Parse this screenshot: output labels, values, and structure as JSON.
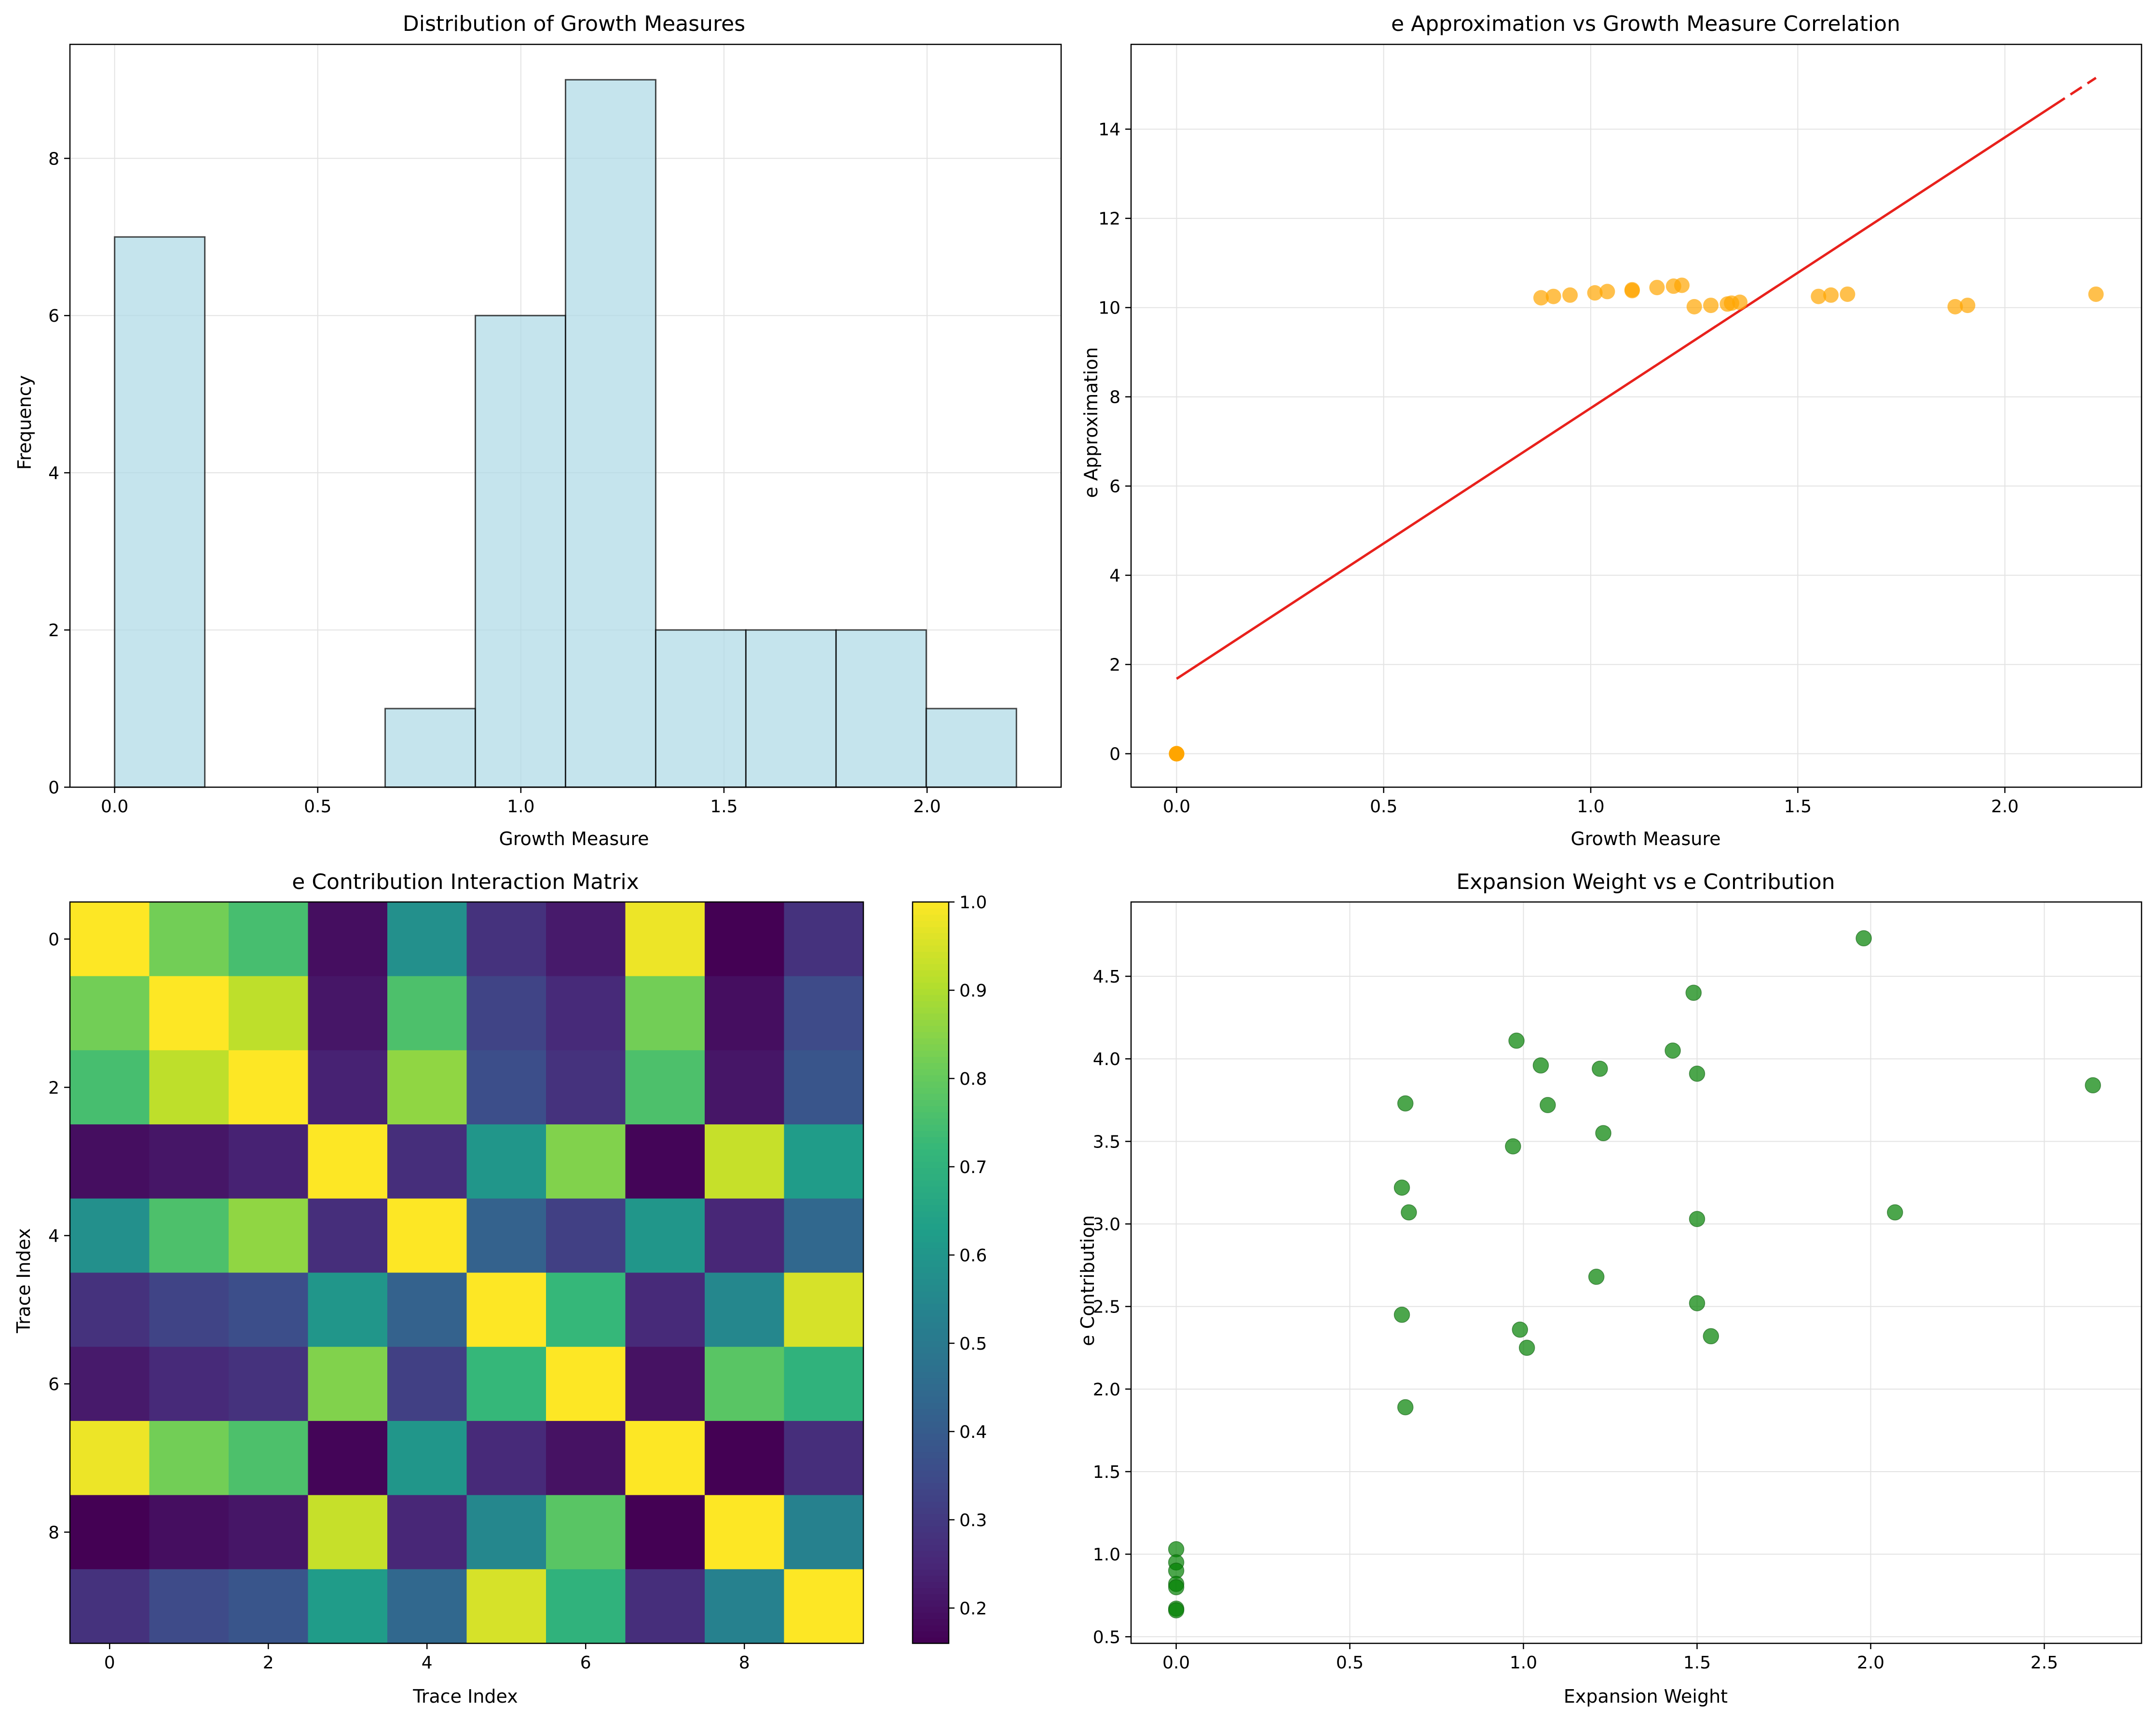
{
  "chart_data": [
    {
      "type": "bar",
      "title": "Distribution of Growth Measures",
      "xlabel": "Growth Measure",
      "ylabel": "Frequency",
      "xlim": [
        -0.11,
        2.33
      ],
      "ylim": [
        0,
        9.45
      ],
      "xticks": [
        0.0,
        0.5,
        1.0,
        1.5,
        2.0
      ],
      "xtick_labels": [
        "0.0",
        "0.5",
        "1.0",
        "1.5",
        "2.0"
      ],
      "yticks": [
        0,
        2,
        4,
        6,
        8
      ],
      "ytick_labels": [
        "0",
        "2",
        "4",
        "6",
        "8"
      ],
      "grid": true,
      "bar_color": "#add8e6",
      "bin_edges": [
        0.0,
        0.222,
        0.444,
        0.666,
        0.888,
        1.11,
        1.332,
        1.554,
        1.776,
        1.998,
        2.22
      ],
      "values": [
        7,
        0,
        0,
        1,
        6,
        9,
        2,
        2,
        2,
        1
      ]
    },
    {
      "type": "scatter",
      "title": "e Approximation vs Growth Measure Correlation",
      "xlabel": "Growth Measure",
      "ylabel": "e Approximation",
      "xlim": [
        -0.11,
        2.33
      ],
      "ylim": [
        -0.75,
        15.9
      ],
      "xticks": [
        0.0,
        0.5,
        1.0,
        1.5,
        2.0
      ],
      "xtick_labels": [
        "0.0",
        "0.5",
        "1.0",
        "1.5",
        "2.0"
      ],
      "yticks": [
        0,
        2,
        4,
        6,
        8,
        10,
        12,
        14
      ],
      "ytick_labels": [
        "0",
        "2",
        "4",
        "6",
        "8",
        "10",
        "12",
        "14"
      ],
      "grid": true,
      "point_color": "#ffa500",
      "trend_color": "#e8211c",
      "trend_line": {
        "x": [
          0.0,
          2.22
        ],
        "y": [
          1.68,
          15.15
        ]
      },
      "x": [
        0,
        0,
        0,
        0,
        0,
        0,
        0,
        0.88,
        0.91,
        0.95,
        1.01,
        1.04,
        1.1,
        1.1,
        1.16,
        1.2,
        1.22,
        1.25,
        1.29,
        1.33,
        1.34,
        1.36,
        1.55,
        1.58,
        1.62,
        1.88,
        1.91,
        2.22
      ],
      "y": [
        0,
        0,
        0,
        0,
        0,
        0,
        0,
        10.22,
        10.25,
        10.28,
        10.33,
        10.36,
        10.4,
        10.38,
        10.45,
        10.48,
        10.5,
        10.02,
        10.05,
        10.08,
        10.1,
        10.12,
        10.25,
        10.28,
        10.3,
        10.02,
        10.05,
        10.3
      ]
    },
    {
      "type": "heatmap",
      "title": "e Contribution Interaction Matrix",
      "xlabel": "Trace Index",
      "ylabel": "Trace Index",
      "xticks": [
        0,
        2,
        4,
        6,
        8
      ],
      "xtick_labels": [
        "0",
        "2",
        "4",
        "6",
        "8"
      ],
      "yticks": [
        0,
        2,
        4,
        6,
        8
      ],
      "ytick_labels": [
        "0",
        "2",
        "4",
        "6",
        "8"
      ],
      "colormap": "viridis",
      "colorbar_range": [
        0.16,
        1.0
      ],
      "colorbar_ticks": [
        0.2,
        0.3,
        0.4,
        0.5,
        0.6,
        0.7,
        0.8,
        0.9,
        1.0
      ],
      "colorbar_tick_labels": [
        "0.2",
        "0.3",
        "0.4",
        "0.5",
        "0.6",
        "0.7",
        "0.8",
        "0.9",
        "1.0"
      ],
      "matrix": [
        [
          1.0,
          0.82,
          0.75,
          0.19,
          0.58,
          0.28,
          0.22,
          0.98,
          0.16,
          0.28
        ],
        [
          0.82,
          1.0,
          0.92,
          0.21,
          0.76,
          0.33,
          0.26,
          0.82,
          0.19,
          0.35
        ],
        [
          0.75,
          0.92,
          1.0,
          0.24,
          0.86,
          0.36,
          0.28,
          0.76,
          0.21,
          0.38
        ],
        [
          0.19,
          0.21,
          0.24,
          1.0,
          0.27,
          0.6,
          0.84,
          0.17,
          0.93,
          0.62
        ],
        [
          0.58,
          0.76,
          0.86,
          0.27,
          1.0,
          0.42,
          0.32,
          0.6,
          0.25,
          0.44
        ],
        [
          0.28,
          0.33,
          0.36,
          0.6,
          0.42,
          1.0,
          0.72,
          0.26,
          0.55,
          0.95
        ],
        [
          0.22,
          0.26,
          0.28,
          0.84,
          0.32,
          0.72,
          1.0,
          0.2,
          0.78,
          0.7
        ],
        [
          0.98,
          0.82,
          0.76,
          0.17,
          0.6,
          0.26,
          0.2,
          1.0,
          0.16,
          0.27
        ],
        [
          0.16,
          0.19,
          0.21,
          0.93,
          0.25,
          0.55,
          0.78,
          0.16,
          1.0,
          0.53
        ],
        [
          0.28,
          0.35,
          0.38,
          0.62,
          0.44,
          0.95,
          0.7,
          0.27,
          0.53,
          1.0
        ]
      ]
    },
    {
      "type": "scatter",
      "title": "Expansion Weight vs e Contribution",
      "xlabel": "Expansion Weight",
      "ylabel": "e Contribution",
      "xlim": [
        -0.13,
        2.78
      ],
      "ylim": [
        0.46,
        4.95
      ],
      "xticks": [
        0.0,
        0.5,
        1.0,
        1.5,
        2.0,
        2.5
      ],
      "xtick_labels": [
        "0.0",
        "0.5",
        "1.0",
        "1.5",
        "2.0",
        "2.5"
      ],
      "yticks": [
        0.5,
        1.0,
        1.5,
        2.0,
        2.5,
        3.0,
        3.5,
        4.0,
        4.5
      ],
      "ytick_labels": [
        "0.5",
        "1.0",
        "1.5",
        "2.0",
        "2.5",
        "3.0",
        "3.5",
        "4.0",
        "4.5"
      ],
      "grid": true,
      "point_color": "#008000",
      "x": [
        0,
        0,
        0,
        0,
        0,
        0,
        0,
        0.65,
        0.65,
        0.66,
        0.66,
        0.67,
        0.97,
        0.98,
        0.99,
        1.01,
        1.05,
        1.07,
        1.21,
        1.22,
        1.23,
        1.43,
        1.49,
        1.5,
        1.5,
        1.5,
        1.54,
        1.98,
        2.07,
        2.64
      ],
      "y": [
        1.03,
        0.95,
        0.9,
        0.82,
        0.8,
        0.67,
        0.66,
        3.22,
        2.45,
        3.73,
        1.89,
        3.07,
        3.47,
        4.11,
        2.36,
        2.25,
        3.96,
        3.72,
        2.68,
        3.94,
        3.55,
        4.05,
        4.4,
        3.91,
        3.03,
        2.52,
        2.32,
        4.73,
        3.07,
        3.84
      ]
    }
  ]
}
